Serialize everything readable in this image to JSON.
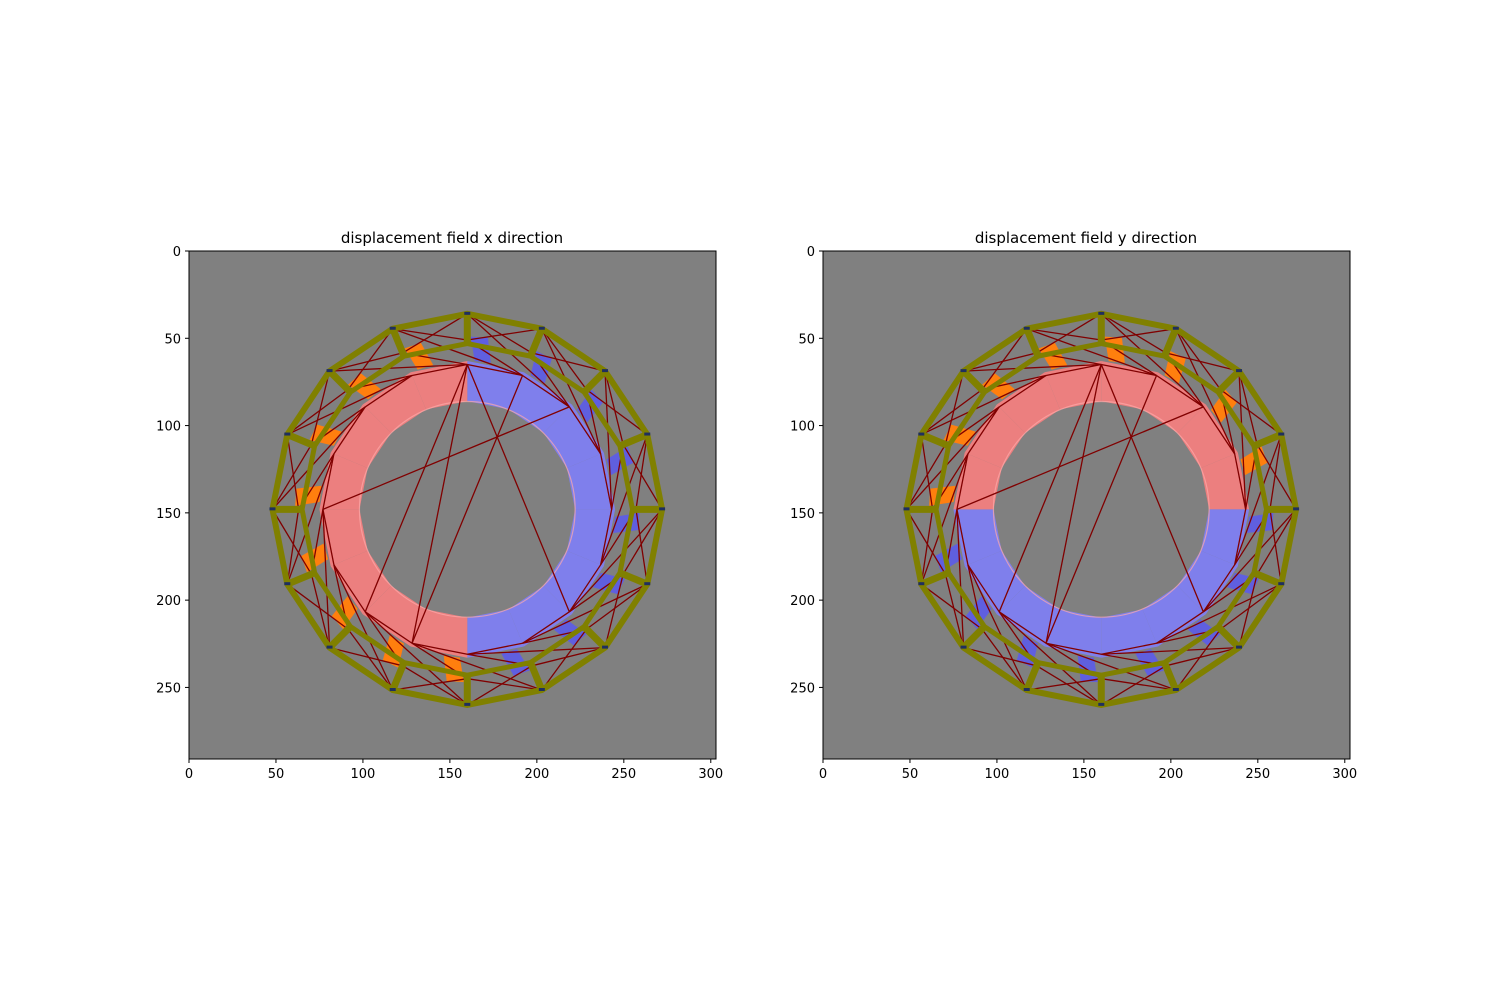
{
  "chart_data": [
    {
      "type": "heatmap",
      "title": "displacement field x direction",
      "xlabel": "",
      "ylabel": "",
      "xlim": [
        0,
        303
      ],
      "ylim": [
        291,
        0
      ],
      "x_ticks": [
        "0",
        "50",
        "100",
        "150",
        "200",
        "250",
        "300"
      ],
      "y_ticks": [
        "0",
        "50",
        "100",
        "150",
        "200",
        "250"
      ],
      "background": "#808080",
      "ring": {
        "center": [
          160,
          148
        ],
        "outer_radius": 112,
        "inner_radius": 97,
        "inner_boundary_radius": 62,
        "segments": 16
      },
      "field": "x",
      "colors": {
        "positive": "#ff7f7f",
        "negative": "#7f7fff",
        "strong": "#ff7f0e",
        "frame": "#808000",
        "mesh": "#800000"
      }
    },
    {
      "type": "heatmap",
      "title": "displacement field y direction",
      "xlabel": "",
      "ylabel": "",
      "xlim": [
        0,
        303
      ],
      "ylim": [
        291,
        0
      ],
      "x_ticks": [
        "0",
        "50",
        "100",
        "150",
        "200",
        "250",
        "300"
      ],
      "y_ticks": [
        "0",
        "50",
        "100",
        "150",
        "200",
        "250"
      ],
      "background": "#808080",
      "ring": {
        "center": [
          160,
          148
        ],
        "outer_radius": 112,
        "inner_radius": 97,
        "inner_boundary_radius": 62,
        "segments": 16
      },
      "field": "y",
      "colors": {
        "positive": "#ff7f7f",
        "negative": "#7f7fff",
        "strong": "#ff7f0e",
        "frame": "#808000",
        "mesh": "#800000"
      }
    }
  ]
}
